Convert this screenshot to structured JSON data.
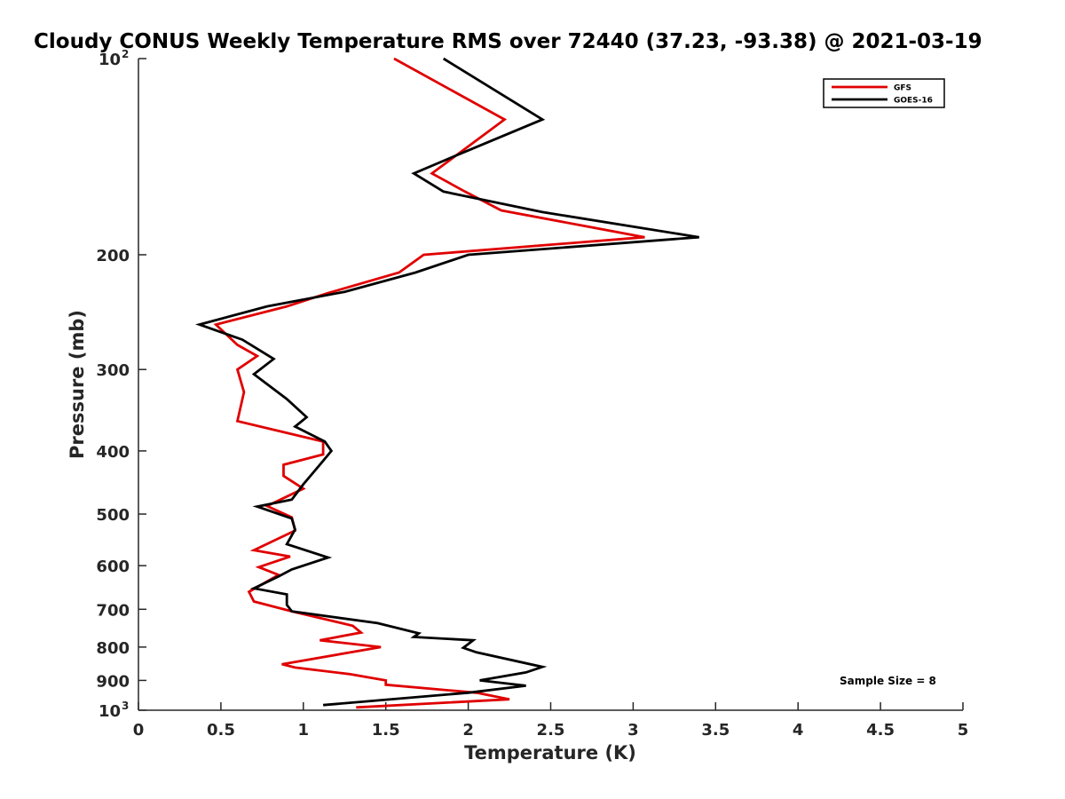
{
  "chart_data": {
    "type": "line",
    "title": "Cloudy CONUS Weekly Temperature RMS over 72440 (37.23, -93.38) @ 2021-03-19",
    "xlabel": "Temperature (K)",
    "ylabel": "Pressure (mb)",
    "xlim": [
      0,
      5
    ],
    "ylim": [
      100,
      1000
    ],
    "y_scale": "log",
    "y_reversed": true,
    "grid": false,
    "legend_position": "top-right",
    "x_ticks": [
      {
        "value": 0,
        "label": "0"
      },
      {
        "value": 0.5,
        "label": "0.5"
      },
      {
        "value": 1,
        "label": "1"
      },
      {
        "value": 1.5,
        "label": "1.5"
      },
      {
        "value": 2,
        "label": "2"
      },
      {
        "value": 2.5,
        "label": "2.5"
      },
      {
        "value": 3,
        "label": "3"
      },
      {
        "value": 3.5,
        "label": "3.5"
      },
      {
        "value": 4,
        "label": "4"
      },
      {
        "value": 4.5,
        "label": "4.5"
      },
      {
        "value": 5,
        "label": "5"
      }
    ],
    "y_ticks": [
      {
        "value": 100,
        "label": "10",
        "exponent": "2"
      },
      {
        "value": 200,
        "label": "200"
      },
      {
        "value": 300,
        "label": "300"
      },
      {
        "value": 400,
        "label": "400"
      },
      {
        "value": 500,
        "label": "500"
      },
      {
        "value": 600,
        "label": "600"
      },
      {
        "value": 700,
        "label": "700"
      },
      {
        "value": 800,
        "label": "800"
      },
      {
        "value": 900,
        "label": "900"
      },
      {
        "value": 1000,
        "label": "10",
        "exponent": "3"
      }
    ],
    "series": [
      {
        "name": "GFS",
        "color": "#e00000",
        "points": [
          [
            1.55,
            100
          ],
          [
            2.22,
            124
          ],
          [
            1.78,
            150
          ],
          [
            1.98,
            160
          ],
          [
            2.2,
            171
          ],
          [
            3.07,
            188
          ],
          [
            1.73,
            200
          ],
          [
            1.58,
            213
          ],
          [
            1.15,
            229
          ],
          [
            0.9,
            240
          ],
          [
            0.47,
            256
          ],
          [
            0.6,
            275
          ],
          [
            0.72,
            286
          ],
          [
            0.6,
            300
          ],
          [
            0.64,
            325
          ],
          [
            0.6,
            360
          ],
          [
            1.12,
            387
          ],
          [
            1.12,
            405
          ],
          [
            0.88,
            420
          ],
          [
            0.88,
            437
          ],
          [
            1.0,
            457
          ],
          [
            0.78,
            486
          ],
          [
            0.93,
            506
          ],
          [
            0.95,
            530
          ],
          [
            0.7,
            568
          ],
          [
            0.92,
            581
          ],
          [
            0.73,
            603
          ],
          [
            0.85,
            620
          ],
          [
            0.67,
            658
          ],
          [
            0.7,
            681
          ],
          [
            0.93,
            705
          ],
          [
            1.3,
            742
          ],
          [
            1.35,
            760
          ],
          [
            1.1,
            781
          ],
          [
            1.47,
            800
          ],
          [
            0.87,
            850
          ],
          [
            0.95,
            860
          ],
          [
            1.28,
            880
          ],
          [
            1.5,
            900
          ],
          [
            1.5,
            914
          ],
          [
            2.05,
            940
          ],
          [
            2.25,
            962
          ],
          [
            1.32,
            990
          ]
        ]
      },
      {
        "name": "GOES-16",
        "color": "#000000",
        "points": [
          [
            1.85,
            100
          ],
          [
            2.45,
            124
          ],
          [
            1.95,
            140
          ],
          [
            1.67,
            150
          ],
          [
            1.85,
            160
          ],
          [
            2.45,
            172
          ],
          [
            3.4,
            188
          ],
          [
            2.0,
            200
          ],
          [
            1.68,
            213
          ],
          [
            1.25,
            228
          ],
          [
            0.78,
            240
          ],
          [
            0.37,
            256
          ],
          [
            0.63,
            270
          ],
          [
            0.82,
            289
          ],
          [
            0.7,
            305
          ],
          [
            0.9,
            333
          ],
          [
            1.02,
            355
          ],
          [
            0.95,
            367
          ],
          [
            1.13,
            387
          ],
          [
            1.17,
            400
          ],
          [
            1.1,
            420
          ],
          [
            1.0,
            450
          ],
          [
            0.93,
            475
          ],
          [
            0.72,
            487
          ],
          [
            0.93,
            508
          ],
          [
            0.95,
            528
          ],
          [
            0.9,
            556
          ],
          [
            1.15,
            583
          ],
          [
            0.93,
            608
          ],
          [
            0.85,
            623
          ],
          [
            0.7,
            650
          ],
          [
            0.9,
            664
          ],
          [
            0.9,
            689
          ],
          [
            0.93,
            705
          ],
          [
            1.45,
            735
          ],
          [
            1.7,
            762
          ],
          [
            1.67,
            772
          ],
          [
            2.03,
            781
          ],
          [
            1.97,
            802
          ],
          [
            2.05,
            815
          ],
          [
            2.45,
            858
          ],
          [
            2.35,
            875
          ],
          [
            2.07,
            900
          ],
          [
            2.35,
            917
          ],
          [
            2.0,
            940
          ],
          [
            1.12,
            982
          ]
        ]
      }
    ],
    "annotations": [
      {
        "text": "Sample Size = 8",
        "x": 4.28,
        "y": 913
      }
    ]
  }
}
